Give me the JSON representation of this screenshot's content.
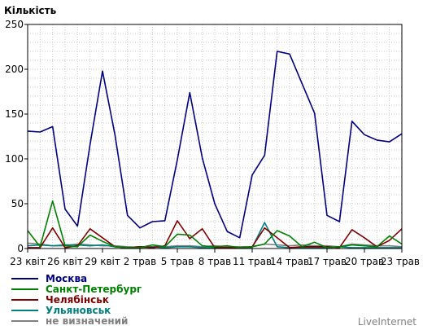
{
  "chart_data": {
    "type": "line",
    "ylabel": "Кількість",
    "ylim": [
      0,
      250
    ],
    "yticks": [
      0,
      50,
      100,
      150,
      200,
      250
    ],
    "xlim": [
      0,
      30
    ],
    "xticks": [
      {
        "x": 0,
        "label": "23 квіт"
      },
      {
        "x": 3,
        "label": "26 квіт"
      },
      {
        "x": 6,
        "label": "29 квіт"
      },
      {
        "x": 9,
        "label": "2 трав"
      },
      {
        "x": 12,
        "label": "5 трав"
      },
      {
        "x": 15,
        "label": "8 трав"
      },
      {
        "x": 18,
        "label": "11 трав"
      },
      {
        "x": 21,
        "label": "14 трав"
      },
      {
        "x": 24,
        "label": "17 трав"
      },
      {
        "x": 27,
        "label": "20 трав"
      },
      {
        "x": 30,
        "label": "23 трав"
      }
    ],
    "grid": true,
    "legend_position": "bottom-left",
    "series": [
      {
        "name": "Москва",
        "color": "#000080",
        "values": [
          131,
          130,
          136,
          44,
          25,
          116,
          198,
          127,
          37,
          23,
          30,
          31,
          99,
          174,
          101,
          50,
          19,
          12,
          82,
          104,
          220,
          217,
          184,
          151,
          37,
          30,
          142,
          127,
          121,
          119,
          128
        ]
      },
      {
        "name": "Санкт-Петербург",
        "color": "#008000",
        "values": [
          20,
          2,
          53,
          3,
          2,
          15,
          8,
          2,
          1,
          1,
          4,
          2,
          16,
          15,
          3,
          2,
          3,
          1,
          2,
          5,
          20,
          14,
          2,
          7,
          1,
          2,
          4,
          3,
          2,
          14,
          5
        ]
      },
      {
        "name": "Челябінськ",
        "color": "#800000",
        "values": [
          1,
          1,
          23,
          1,
          3,
          22,
          12,
          2,
          1,
          2,
          1,
          3,
          31,
          11,
          22,
          1,
          1,
          1,
          2,
          23,
          12,
          1,
          2,
          2,
          2,
          1,
          21,
          12,
          2,
          9,
          22
        ]
      },
      {
        "name": "Ульяновськ",
        "color": "#008080",
        "values": [
          3,
          4,
          3,
          4,
          4,
          3,
          4,
          2,
          1,
          2,
          2,
          1,
          2,
          2,
          1,
          1,
          1,
          1,
          1,
          29,
          2,
          1,
          1,
          1,
          1,
          2,
          1,
          1,
          1,
          1,
          1
        ]
      },
      {
        "name": "не визначений",
        "color": "#808080",
        "values": [
          6,
          5,
          3,
          3,
          5,
          4,
          3,
          3,
          2,
          1,
          2,
          2,
          3,
          3,
          2,
          3,
          2,
          2,
          2,
          5,
          4,
          3,
          4,
          3,
          3,
          2,
          5,
          4,
          3,
          3,
          2
        ]
      }
    ]
  },
  "footer": {
    "brand": "LiveInternet"
  }
}
